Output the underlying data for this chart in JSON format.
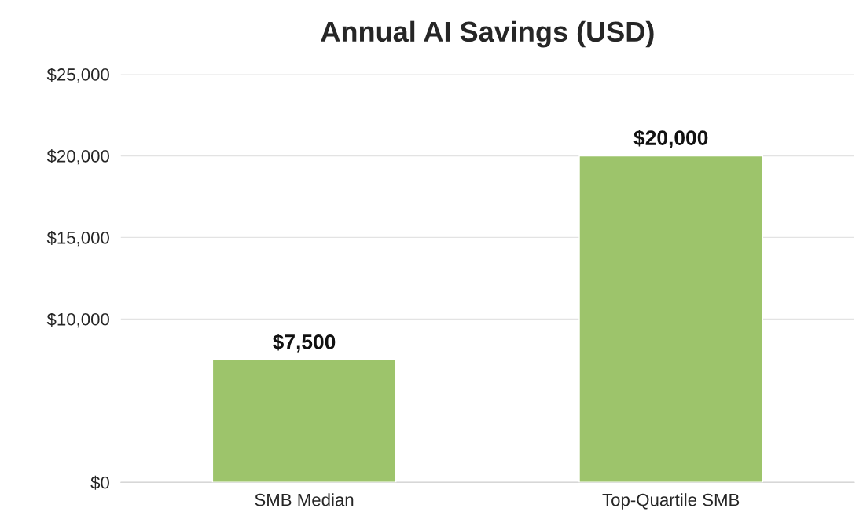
{
  "chart_data": {
    "type": "bar",
    "title": "Annual AI Savings (USD)",
    "categories": [
      "SMB Median",
      "Top-Quartile SMB"
    ],
    "values": [
      7500,
      20000
    ],
    "value_labels": [
      "$7,500",
      "$20,000"
    ],
    "color": "#9dc46b",
    "ylim": [
      0,
      25000
    ],
    "yticks": [
      {
        "value": 0,
        "label": "$0"
      },
      {
        "value": 10000,
        "label": "$10,000"
      },
      {
        "value": 15000,
        "label": "$15,000"
      },
      {
        "value": 20000,
        "label": "$20,000"
      },
      {
        "value": 25000,
        "label": "$25,000"
      }
    ],
    "grid": "y",
    "legend": false
  }
}
